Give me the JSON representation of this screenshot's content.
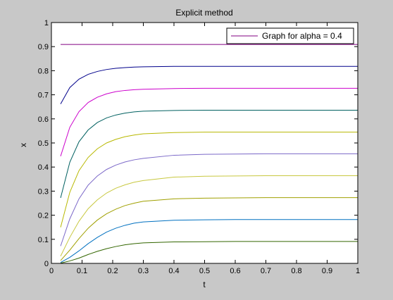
{
  "chart_data": {
    "type": "line",
    "title": "Explicit method",
    "xlabel": "t",
    "ylabel": "x",
    "xlim": [
      0,
      1
    ],
    "ylim": [
      0,
      1
    ],
    "xticks": [
      0,
      0.1,
      0.2,
      0.3,
      0.4,
      0.5,
      0.6,
      0.7,
      0.8,
      0.9,
      1
    ],
    "xtick_labels": [
      "0",
      "0.1",
      "0.2",
      "0.3",
      "0.4",
      "0.5",
      "0.6",
      "0.7",
      "0.8",
      "0.9",
      "1"
    ],
    "yticks": [
      0,
      0.1,
      0.2,
      0.3,
      0.4,
      0.5,
      0.6,
      0.7,
      0.8,
      0.9,
      1
    ],
    "ytick_labels": [
      "0",
      "0.1",
      "0.2",
      "0.3",
      "0.4",
      "0.5",
      "0.6",
      "0.7",
      "0.8",
      "0.9",
      "1"
    ],
    "grid": false,
    "legend": {
      "placement": "top-right",
      "entries": [
        "Graph for alpha = 0.4"
      ]
    },
    "x": [
      0.03,
      0.06,
      0.09,
      0.12,
      0.15,
      0.18,
      0.21,
      0.24,
      0.27,
      0.3,
      0.4,
      0.5,
      0.6,
      0.7,
      0.8,
      0.9,
      1.0
    ],
    "series": [
      {
        "color": "#800080",
        "values": [
          0.909,
          0.909,
          0.909,
          0.909,
          0.909,
          0.909,
          0.909,
          0.909,
          0.909,
          0.909,
          0.909,
          0.909,
          0.909,
          0.909,
          0.909,
          0.909,
          0.909
        ]
      },
      {
        "color": "#00008b",
        "values": [
          0.662,
          0.73,
          0.765,
          0.785,
          0.797,
          0.805,
          0.81,
          0.813,
          0.815,
          0.816,
          0.818,
          0.818,
          0.818,
          0.818,
          0.818,
          0.818,
          0.818
        ]
      },
      {
        "color": "#cc00cc",
        "values": [
          0.445,
          0.565,
          0.63,
          0.668,
          0.69,
          0.704,
          0.713,
          0.718,
          0.721,
          0.723,
          0.726,
          0.727,
          0.727,
          0.727,
          0.727,
          0.727,
          0.727
        ]
      },
      {
        "color": "#006060",
        "values": [
          0.272,
          0.42,
          0.505,
          0.554,
          0.585,
          0.604,
          0.616,
          0.624,
          0.629,
          0.632,
          0.635,
          0.636,
          0.636,
          0.636,
          0.636,
          0.636,
          0.636
        ]
      },
      {
        "color": "#b8b800",
        "values": [
          0.15,
          0.295,
          0.385,
          0.44,
          0.476,
          0.5,
          0.515,
          0.526,
          0.533,
          0.538,
          0.543,
          0.545,
          0.545,
          0.545,
          0.545,
          0.545,
          0.545
        ]
      },
      {
        "color": "#7b68c8",
        "values": [
          0.072,
          0.185,
          0.268,
          0.325,
          0.363,
          0.39,
          0.408,
          0.421,
          0.43,
          0.436,
          0.449,
          0.453,
          0.454,
          0.455,
          0.455,
          0.455,
          0.455
        ]
      },
      {
        "color": "#c8c840",
        "values": [
          0.03,
          0.108,
          0.175,
          0.227,
          0.264,
          0.292,
          0.312,
          0.326,
          0.337,
          0.344,
          0.358,
          0.362,
          0.363,
          0.364,
          0.364,
          0.364,
          0.364
        ]
      },
      {
        "color": "#a0a000",
        "values": [
          0.012,
          0.055,
          0.103,
          0.146,
          0.18,
          0.206,
          0.225,
          0.24,
          0.25,
          0.258,
          0.268,
          0.271,
          0.272,
          0.273,
          0.273,
          0.273,
          0.273
        ]
      },
      {
        "color": "#0070c0",
        "values": [
          0.004,
          0.025,
          0.052,
          0.082,
          0.108,
          0.13,
          0.146,
          0.158,
          0.167,
          0.172,
          0.179,
          0.181,
          0.182,
          0.182,
          0.182,
          0.182,
          0.182
        ]
      },
      {
        "color": "#336600",
        "values": [
          0.001,
          0.01,
          0.022,
          0.037,
          0.05,
          0.061,
          0.07,
          0.077,
          0.082,
          0.085,
          0.089,
          0.09,
          0.091,
          0.091,
          0.091,
          0.091,
          0.091
        ]
      }
    ]
  }
}
